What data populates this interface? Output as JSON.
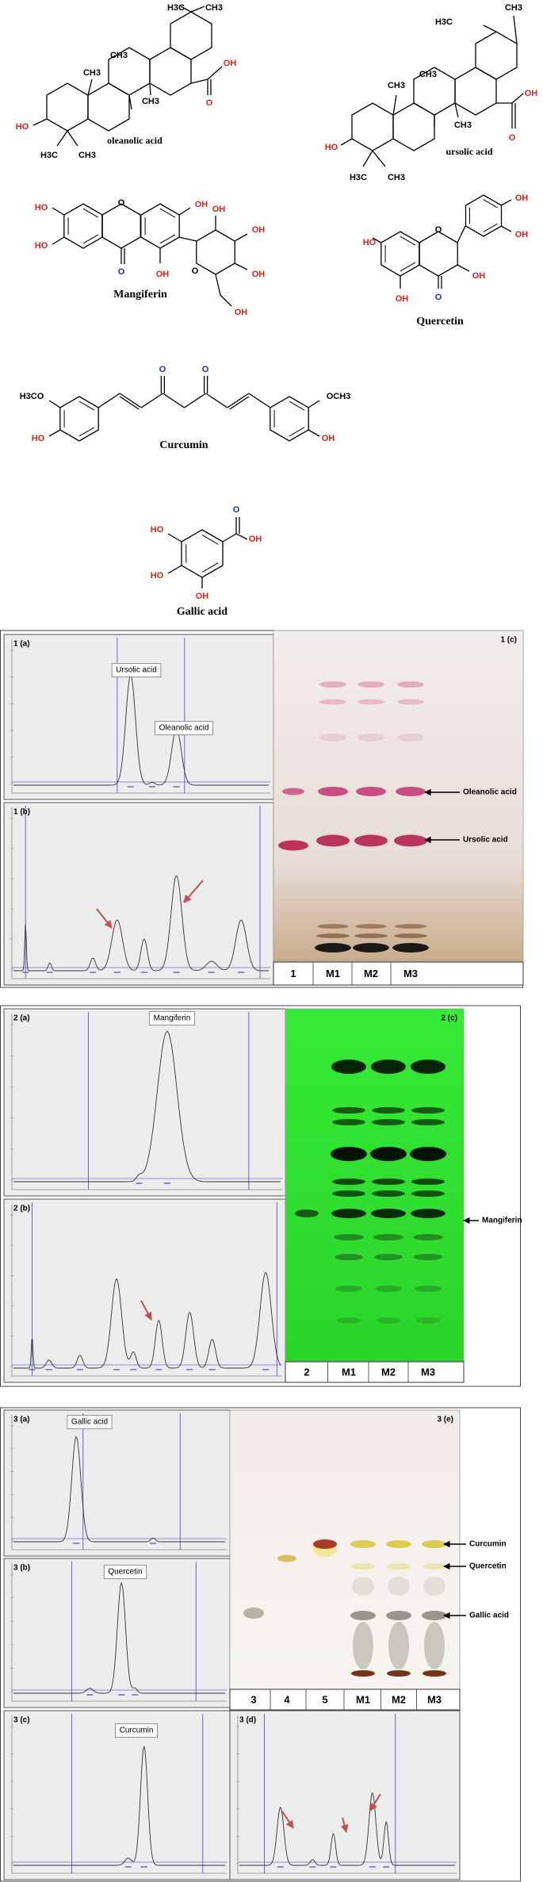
{
  "structures": [
    {
      "label": "oleanolic acid",
      "atoms": [
        "H3C",
        "CH3",
        "CH3",
        "CH3",
        "CH3",
        "OH",
        "O",
        "HO",
        "H3C",
        "CH3"
      ]
    },
    {
      "label": "ursolic acid",
      "atoms": [
        "H3C",
        "CH3",
        "CH3",
        "CH3",
        "CH3",
        "OH",
        "O",
        "HO",
        "H3C",
        "CH3"
      ]
    },
    {
      "label": "Mangiferin",
      "atoms": [
        "HO",
        "HO",
        "O",
        "O",
        "OH",
        "OH",
        "OH",
        "OH",
        "OH",
        "O",
        "OH"
      ]
    },
    {
      "label": "Quercetin",
      "atoms": [
        "HO",
        "O",
        "OH",
        "OH",
        "OH",
        "O",
        "OH"
      ]
    },
    {
      "label": "Curcumin",
      "atoms": [
        "H3CO",
        "HO",
        "O",
        "O",
        "OCH3",
        "OH"
      ]
    },
    {
      "label": "Gallic acid",
      "atoms": [
        "HO",
        "HO",
        "OH",
        "O",
        "OH"
      ]
    }
  ],
  "figures": [
    {
      "chromatograms": [
        {
          "label": "1 (a)",
          "peak_labels": [
            "Ursolic acid",
            "Oleanolic acid"
          ]
        },
        {
          "label": "1 (b)"
        }
      ],
      "plate": {
        "label": "1 (c)",
        "lanes": [
          "1",
          "M1",
          "M2",
          "M3"
        ],
        "markers": [
          "Oleanolic acid",
          "Ursolic acid"
        ]
      }
    },
    {
      "chromatograms": [
        {
          "label": "2 (a)",
          "peak_labels": [
            "Mangiferin"
          ]
        },
        {
          "label": "2 (b)"
        }
      ],
      "plate": {
        "label": "2 (c)",
        "lanes": [
          "2",
          "M1",
          "M2",
          "M3"
        ],
        "markers": [
          "Mangiferin"
        ]
      }
    },
    {
      "chromatograms": [
        {
          "label": "3 (a)",
          "peak_labels": [
            "Gallic acid"
          ]
        },
        {
          "label": "3 (b)",
          "peak_labels": [
            "Quercetin"
          ]
        },
        {
          "label": "3 (c)",
          "peak_labels": [
            "Curcumin"
          ]
        },
        {
          "label": "3 (d)"
        }
      ],
      "plate": {
        "label": "3 (e)",
        "lanes": [
          "3",
          "4",
          "5",
          "M1",
          "M2",
          "M3"
        ],
        "markers": [
          "Curcumin",
          "Quercetin",
          "Gallic acid"
        ]
      }
    }
  ]
}
